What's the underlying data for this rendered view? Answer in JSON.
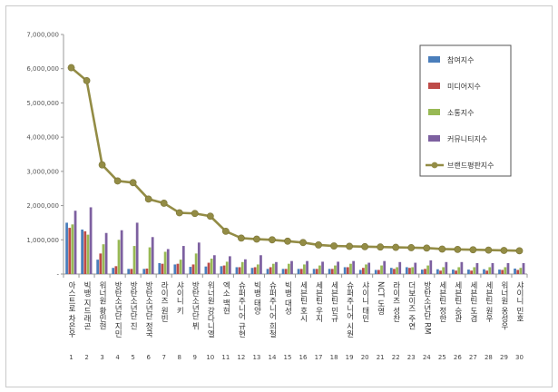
{
  "chart_data": {
    "type": "bar",
    "combo_line_series": "브랜드평판지수",
    "ylim": [
      0,
      7000000
    ],
    "y_ticks": [
      "-",
      "1,000,000",
      "2,000,000",
      "3,000,000",
      "4,000,000",
      "5,000,000",
      "6,000,000",
      "7,000,000"
    ],
    "y_tick_values": [
      0,
      1000000,
      2000000,
      3000000,
      4000000,
      5000000,
      6000000,
      7000000
    ],
    "grid": false,
    "legend_position": "right",
    "categories": [
      "아스트로 차은우",
      "빅뱅 지드래곤",
      "워너원 황민현",
      "방탄소년단 지민",
      "방탄소년단 진",
      "방탄소년단 정국",
      "라이즈 원빈",
      "샤이니 키",
      "방탄소년단 뷔",
      "워너원 강다니엘",
      "엑소 백현",
      "슈퍼주니어 규현",
      "빅뱅 태양",
      "슈퍼주니어 희철",
      "빅뱅 대성",
      "세븐틴 호시",
      "세븐틴 우지",
      "세븐틴 민규",
      "슈퍼주니어 시원",
      "샤이니 태민",
      "NCT 도영",
      "라이즈 성찬",
      "더보이즈 주연",
      "방탄소년단 RM",
      "세븐틴 정한",
      "세븐틴 승관",
      "세븐틴 도겸",
      "세븐틴 원우",
      "워너원 옹성우",
      "샤이니 민호"
    ],
    "ranks": [
      "1",
      "2",
      "3",
      "4",
      "5",
      "6",
      "7",
      "8",
      "9",
      "10",
      "11",
      "12",
      "13",
      "14",
      "15",
      "16",
      "17",
      "18",
      "19",
      "20",
      "21",
      "22",
      "23",
      "24",
      "25",
      "26",
      "27",
      "28",
      "29",
      "30"
    ],
    "series": [
      {
        "name": "참여지수",
        "color": "#4a7ebb",
        "kind": "bar",
        "values": [
          1500000,
          1300000,
          420000,
          180000,
          150000,
          150000,
          320000,
          280000,
          210000,
          220000,
          230000,
          200000,
          180000,
          150000,
          150000,
          150000,
          150000,
          150000,
          200000,
          120000,
          120000,
          180000,
          200000,
          130000,
          140000,
          130000,
          130000,
          140000,
          130000,
          160000
        ]
      },
      {
        "name": "미디어지수",
        "color": "#be4b48",
        "kind": "bar",
        "values": [
          1350000,
          1250000,
          600000,
          230000,
          150000,
          160000,
          300000,
          300000,
          280000,
          330000,
          250000,
          200000,
          200000,
          200000,
          150000,
          150000,
          150000,
          150000,
          200000,
          180000,
          120000,
          150000,
          180000,
          150000,
          100000,
          100000,
          100000,
          100000,
          120000,
          120000
        ]
      },
      {
        "name": "소통지수",
        "color": "#98b954",
        "kind": "bar",
        "values": [
          1450000,
          1150000,
          870000,
          1000000,
          820000,
          780000,
          650000,
          420000,
          600000,
          450000,
          360000,
          350000,
          280000,
          300000,
          300000,
          280000,
          250000,
          250000,
          300000,
          280000,
          250000,
          200000,
          200000,
          250000,
          200000,
          200000,
          200000,
          200000,
          200000,
          180000
        ]
      },
      {
        "name": "커뮤니티지수",
        "color": "#7d60a0",
        "kind": "bar",
        "values": [
          1850000,
          1950000,
          1200000,
          1280000,
          1500000,
          1080000,
          730000,
          820000,
          920000,
          550000,
          520000,
          430000,
          550000,
          350000,
          380000,
          380000,
          360000,
          360000,
          380000,
          330000,
          380000,
          350000,
          330000,
          400000,
          350000,
          350000,
          320000,
          320000,
          320000,
          320000
        ]
      },
      {
        "name": "브랜드평판지수",
        "color": "#938c45",
        "kind": "line",
        "values": [
          6030000,
          5650000,
          3190000,
          2720000,
          2670000,
          2190000,
          2070000,
          1790000,
          1770000,
          1690000,
          1250000,
          1050000,
          1020000,
          1000000,
          960000,
          920000,
          850000,
          820000,
          810000,
          800000,
          790000,
          780000,
          770000,
          760000,
          730000,
          720000,
          710000,
          700000,
          690000,
          680000
        ]
      }
    ]
  }
}
